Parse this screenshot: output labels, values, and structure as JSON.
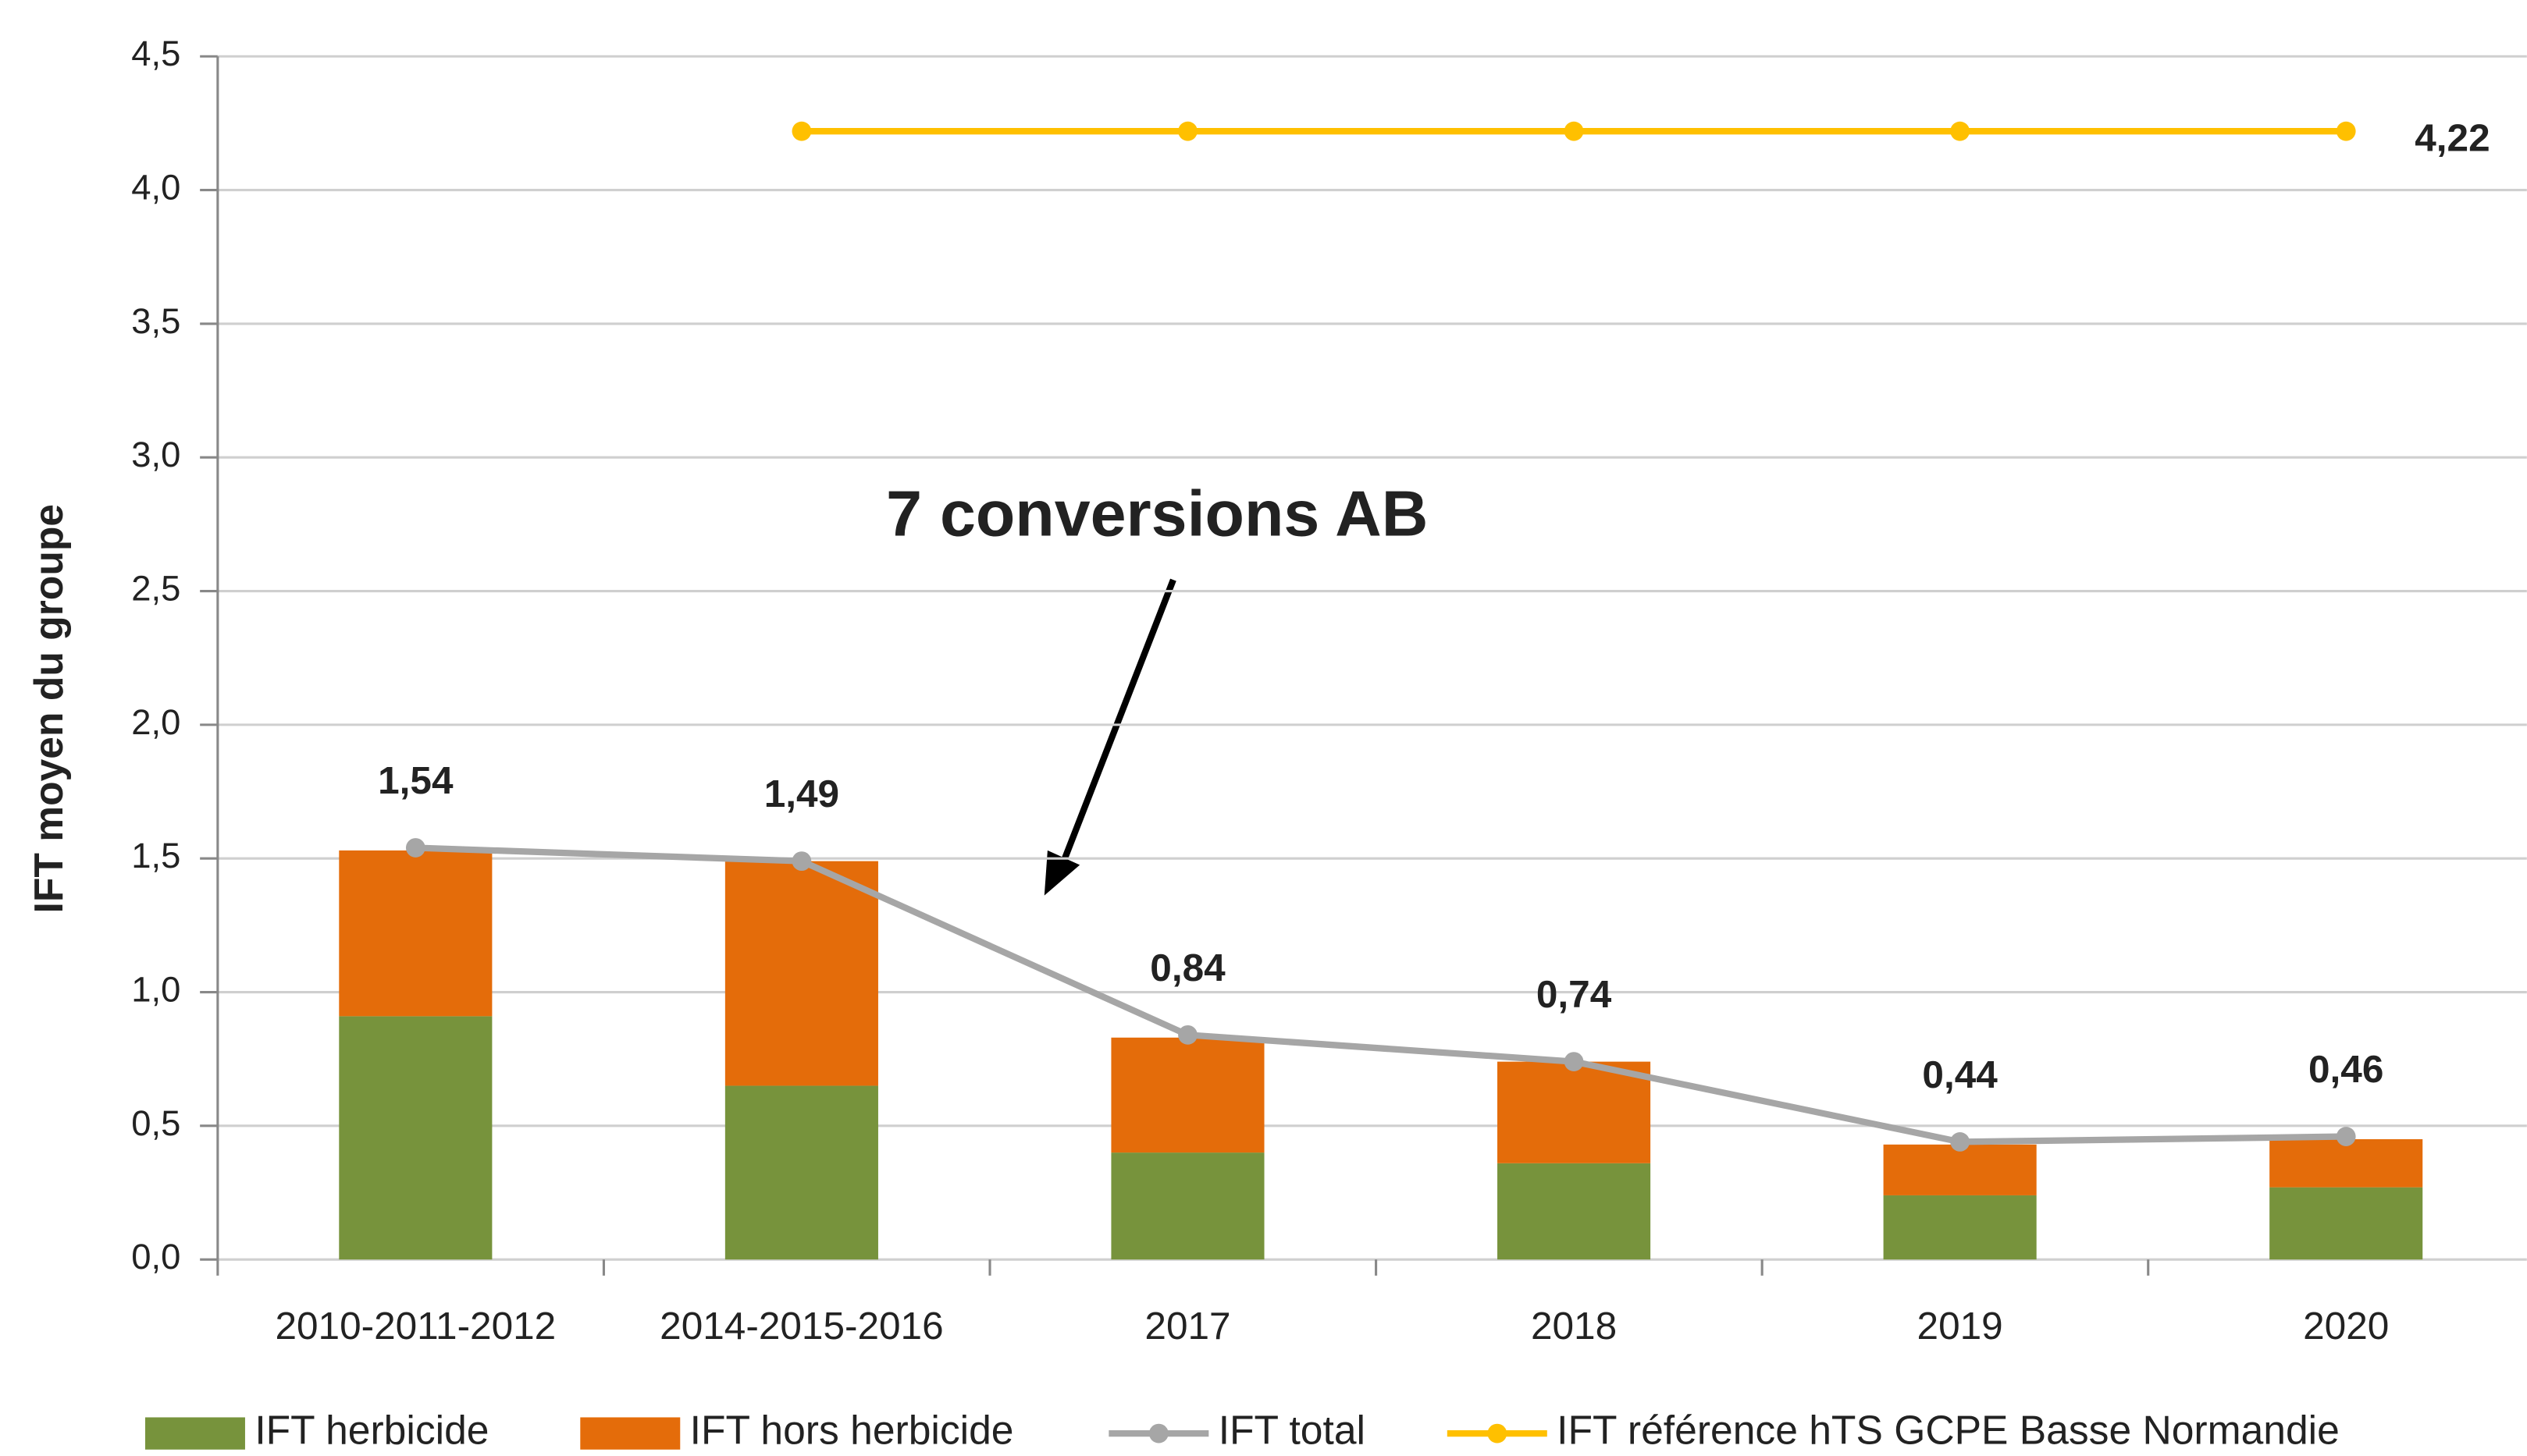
{
  "chart_data": {
    "type": "bar",
    "stacked": true,
    "annotation": "7 conversions AB",
    "y_label": "IFT moyen du groupe",
    "categories": [
      "2010-2011-2012",
      "2014-2015-2016",
      "2017",
      "2018",
      "2019",
      "2020"
    ],
    "series": [
      {
        "name": "IFT herbicide",
        "type": "bar",
        "color": "#77933c",
        "values": [
          0.91,
          0.65,
          0.4,
          0.36,
          0.24,
          0.27
        ]
      },
      {
        "name": "IFT hors herbicide",
        "type": "bar",
        "color": "#e46c0a",
        "values": [
          0.62,
          0.84,
          0.43,
          0.38,
          0.19,
          0.18
        ]
      },
      {
        "name": "IFT total",
        "type": "line",
        "color": "#a6a6a6",
        "values": [
          1.54,
          1.49,
          0.84,
          0.74,
          0.44,
          0.46
        ],
        "value_labels": [
          "1,54",
          "1,49",
          "0,84",
          "0,74",
          "0,44",
          "0,46"
        ]
      },
      {
        "name": "IFT référence hTS GCPE Basse Normandie",
        "type": "line",
        "color": "#ffc000",
        "values": [
          null,
          4.22,
          4.22,
          4.22,
          4.22,
          4.22
        ],
        "value_labels": [
          null,
          null,
          null,
          null,
          null,
          "4,22"
        ]
      }
    ],
    "ylim": [
      0,
      4.5
    ],
    "yticks": [
      {
        "value": 0,
        "label": "0,0"
      },
      {
        "value": 0.5,
        "label": "0,5"
      },
      {
        "value": 1,
        "label": "1,0"
      },
      {
        "value": 1.5,
        "label": "1,5"
      },
      {
        "value": 2,
        "label": "2,0"
      },
      {
        "value": 2.5,
        "label": "2,5"
      },
      {
        "value": 3,
        "label": "3,0"
      },
      {
        "value": 3.5,
        "label": "3,5"
      },
      {
        "value": 4,
        "label": "4,0"
      },
      {
        "value": 4.5,
        "label": "4,5"
      }
    ],
    "grid": true,
    "legend": "bottom"
  }
}
